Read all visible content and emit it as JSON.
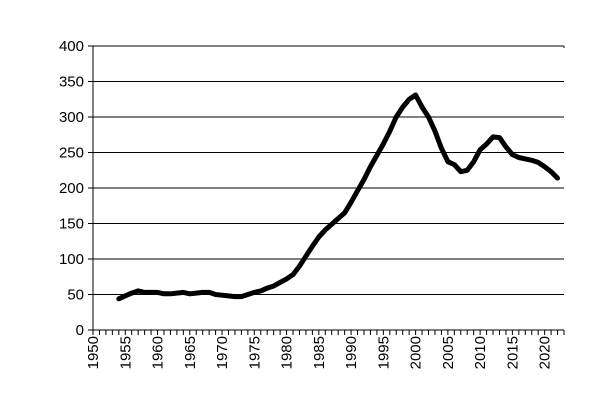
{
  "chart_data": {
    "type": "line",
    "title": "",
    "xlabel": "",
    "ylabel": "",
    "xlim": [
      1950,
      2023
    ],
    "ylim": [
      0,
      400
    ],
    "x_ticks": [
      "1950",
      "1955",
      "1960",
      "1965",
      "1970",
      "1975",
      "1980",
      "1985",
      "1990",
      "1995",
      "2000",
      "2005",
      "2010",
      "2015",
      "2020"
    ],
    "y_ticks": [
      "0",
      "50",
      "100",
      "150",
      "200",
      "250",
      "300",
      "350",
      "400"
    ],
    "grid": "horizontal",
    "legend": "none",
    "series": [
      {
        "color": "#000000",
        "x": [
          1954,
          1955,
          1956,
          1957,
          1958,
          1959,
          1960,
          1961,
          1962,
          1963,
          1964,
          1965,
          1966,
          1967,
          1968,
          1969,
          1970,
          1971,
          1972,
          1973,
          1974,
          1975,
          1976,
          1977,
          1978,
          1979,
          1980,
          1981,
          1982,
          1983,
          1984,
          1985,
          1986,
          1987,
          1988,
          1989,
          1990,
          1991,
          1992,
          1993,
          1994,
          1995,
          1996,
          1997,
          1998,
          1999,
          2000,
          2001,
          2002,
          2003,
          2004,
          2005,
          2006,
          2007,
          2008,
          2009,
          2010,
          2011,
          2012,
          2013,
          2014,
          2015,
          2016,
          2017,
          2018,
          2019,
          2020,
          2021,
          2022
        ],
        "y": [
          44,
          48,
          52,
          55,
          53,
          53,
          53,
          51,
          51,
          52,
          53,
          51,
          52,
          53,
          53,
          50,
          49,
          48,
          47,
          47,
          50,
          53,
          55,
          59,
          62,
          67,
          72,
          78,
          90,
          104,
          118,
          131,
          141,
          149,
          157,
          165,
          180,
          196,
          212,
          230,
          246,
          262,
          280,
          300,
          314,
          325,
          331,
          314,
          300,
          280,
          256,
          237,
          233,
          223,
          225,
          237,
          254,
          262,
          272,
          271,
          258,
          247,
          243,
          241,
          239,
          236,
          230,
          223,
          214
        ]
      }
    ]
  }
}
